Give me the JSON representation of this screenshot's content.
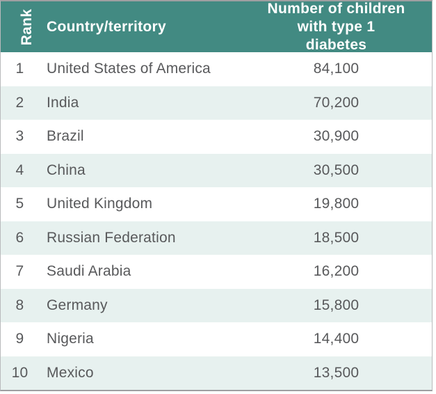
{
  "colors": {
    "header_bg": "#428a82",
    "header_text": "#ffffff",
    "row_bg": "#ffffff",
    "row_alt_bg": "#e7f1ef",
    "body_text": "#58595b",
    "border": "#9e9fa1"
  },
  "table": {
    "header": {
      "rank": "Rank",
      "country": "Country/territory",
      "number_line1": "Number of children",
      "number_line2": "with type 1 diabetes"
    },
    "rows": [
      {
        "rank": "1",
        "country": "United States of America",
        "value": "84,100"
      },
      {
        "rank": "2",
        "country": "India",
        "value": "70,200"
      },
      {
        "rank": "3",
        "country": "Brazil",
        "value": "30,900"
      },
      {
        "rank": "4",
        "country": "China",
        "value": "30,500"
      },
      {
        "rank": "5",
        "country": "United Kingdom",
        "value": "19,800"
      },
      {
        "rank": "6",
        "country": "Russian Federation",
        "value": "18,500"
      },
      {
        "rank": "7",
        "country": "Saudi Arabia",
        "value": "16,200"
      },
      {
        "rank": "8",
        "country": "Germany",
        "value": "15,800"
      },
      {
        "rank": "9",
        "country": "Nigeria",
        "value": "14,400"
      },
      {
        "rank": "10",
        "country": "Mexico",
        "value": "13,500"
      }
    ]
  },
  "chart_data": {
    "type": "table",
    "title": "",
    "columns": [
      "Rank",
      "Country/territory",
      "Number of children with type 1 diabetes"
    ],
    "rows": [
      [
        1,
        "United States of America",
        84100
      ],
      [
        2,
        "India",
        70200
      ],
      [
        3,
        "Brazil",
        30900
      ],
      [
        4,
        "China",
        30500
      ],
      [
        5,
        "United Kingdom",
        19800
      ],
      [
        6,
        "Russian Federation",
        18500
      ],
      [
        7,
        "Saudi Arabia",
        16200
      ],
      [
        8,
        "Germany",
        15800
      ],
      [
        9,
        "Nigeria",
        14400
      ],
      [
        10,
        "Mexico",
        13500
      ]
    ]
  }
}
